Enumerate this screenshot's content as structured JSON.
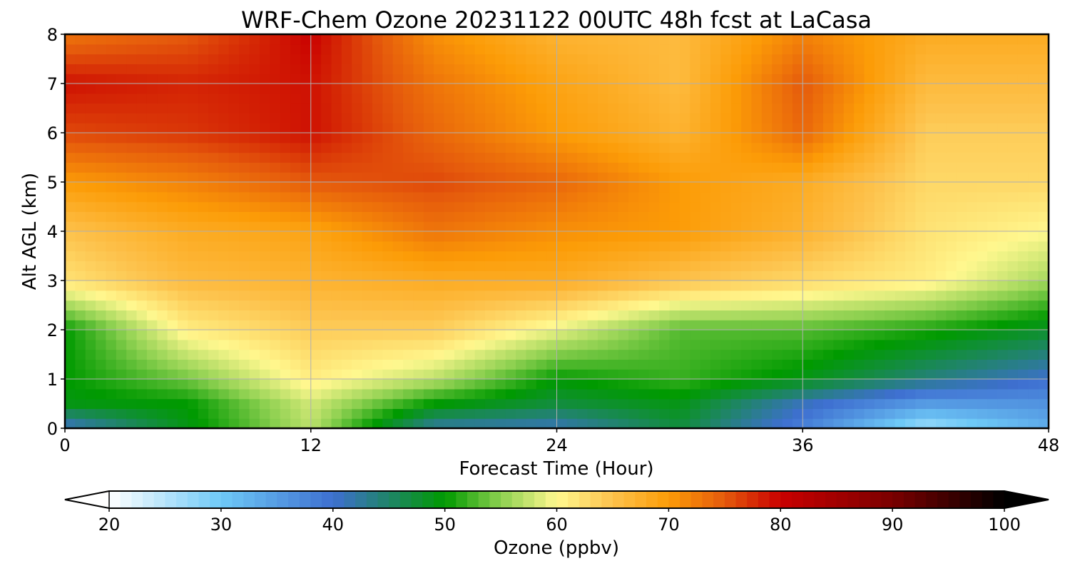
{
  "chart_data": {
    "type": "heatmap",
    "title": "WRF-Chem Ozone  20231122 00UTC 48h fcst at LaCasa",
    "xlabel": "Forecast Time (Hour)",
    "ylabel": "Alt AGL (km)",
    "xlim": [
      0,
      48
    ],
    "ylim": [
      0,
      8
    ],
    "xticks": [
      "0",
      "12",
      "24",
      "36",
      "48"
    ],
    "yticks": [
      "0",
      "1",
      "2",
      "3",
      "4",
      "5",
      "6",
      "7",
      "8"
    ],
    "grid": true,
    "x": [
      0,
      6,
      12,
      18,
      24,
      30,
      36,
      42,
      48
    ],
    "y": [
      0,
      0.5,
      1,
      2,
      3,
      4,
      5,
      6,
      7,
      8
    ],
    "z": [
      [
        40,
        49,
        57,
        42,
        41,
        47,
        38,
        26,
        33
      ],
      [
        49,
        50,
        58,
        50,
        47,
        49,
        41,
        35,
        36
      ],
      [
        50,
        54,
        61,
        57,
        50,
        52,
        49,
        44,
        40
      ],
      [
        50,
        61,
        64,
        64,
        59,
        53,
        53,
        51,
        48
      ],
      [
        62,
        66,
        67,
        68,
        68,
        65,
        63,
        61,
        56
      ],
      [
        65,
        68,
        69,
        73,
        71,
        70,
        67,
        62,
        60
      ],
      [
        70,
        72,
        75,
        76,
        74,
        70,
        68,
        63,
        63
      ],
      [
        76,
        77,
        79,
        74,
        70,
        67,
        74,
        64,
        64
      ],
      [
        79,
        78,
        79,
        73,
        69,
        66,
        75,
        66,
        66
      ],
      [
        73,
        75,
        80,
        71,
        67,
        66,
        72,
        68,
        68
      ]
    ],
    "colorbar": {
      "label": "Ozone  (ppbv)",
      "min": 20,
      "max": 100,
      "ticks": [
        "20",
        "30",
        "40",
        "50",
        "60",
        "70",
        "80",
        "90",
        "100"
      ],
      "extend": "both",
      "colors": [
        {
          "v": 20,
          "c": "#ffffff"
        },
        {
          "v": 30,
          "c": "#6ec9f7"
        },
        {
          "v": 40,
          "c": "#3e6fd0"
        },
        {
          "v": 50,
          "c": "#009a00"
        },
        {
          "v": 55,
          "c": "#8dd050"
        },
        {
          "v": 60,
          "c": "#fff88f"
        },
        {
          "v": 65,
          "c": "#fdc24c"
        },
        {
          "v": 70,
          "c": "#fc9c07"
        },
        {
          "v": 75,
          "c": "#e55a0c"
        },
        {
          "v": 80,
          "c": "#c90000"
        },
        {
          "v": 90,
          "c": "#7a0000"
        },
        {
          "v": 100,
          "c": "#000000"
        }
      ]
    }
  }
}
